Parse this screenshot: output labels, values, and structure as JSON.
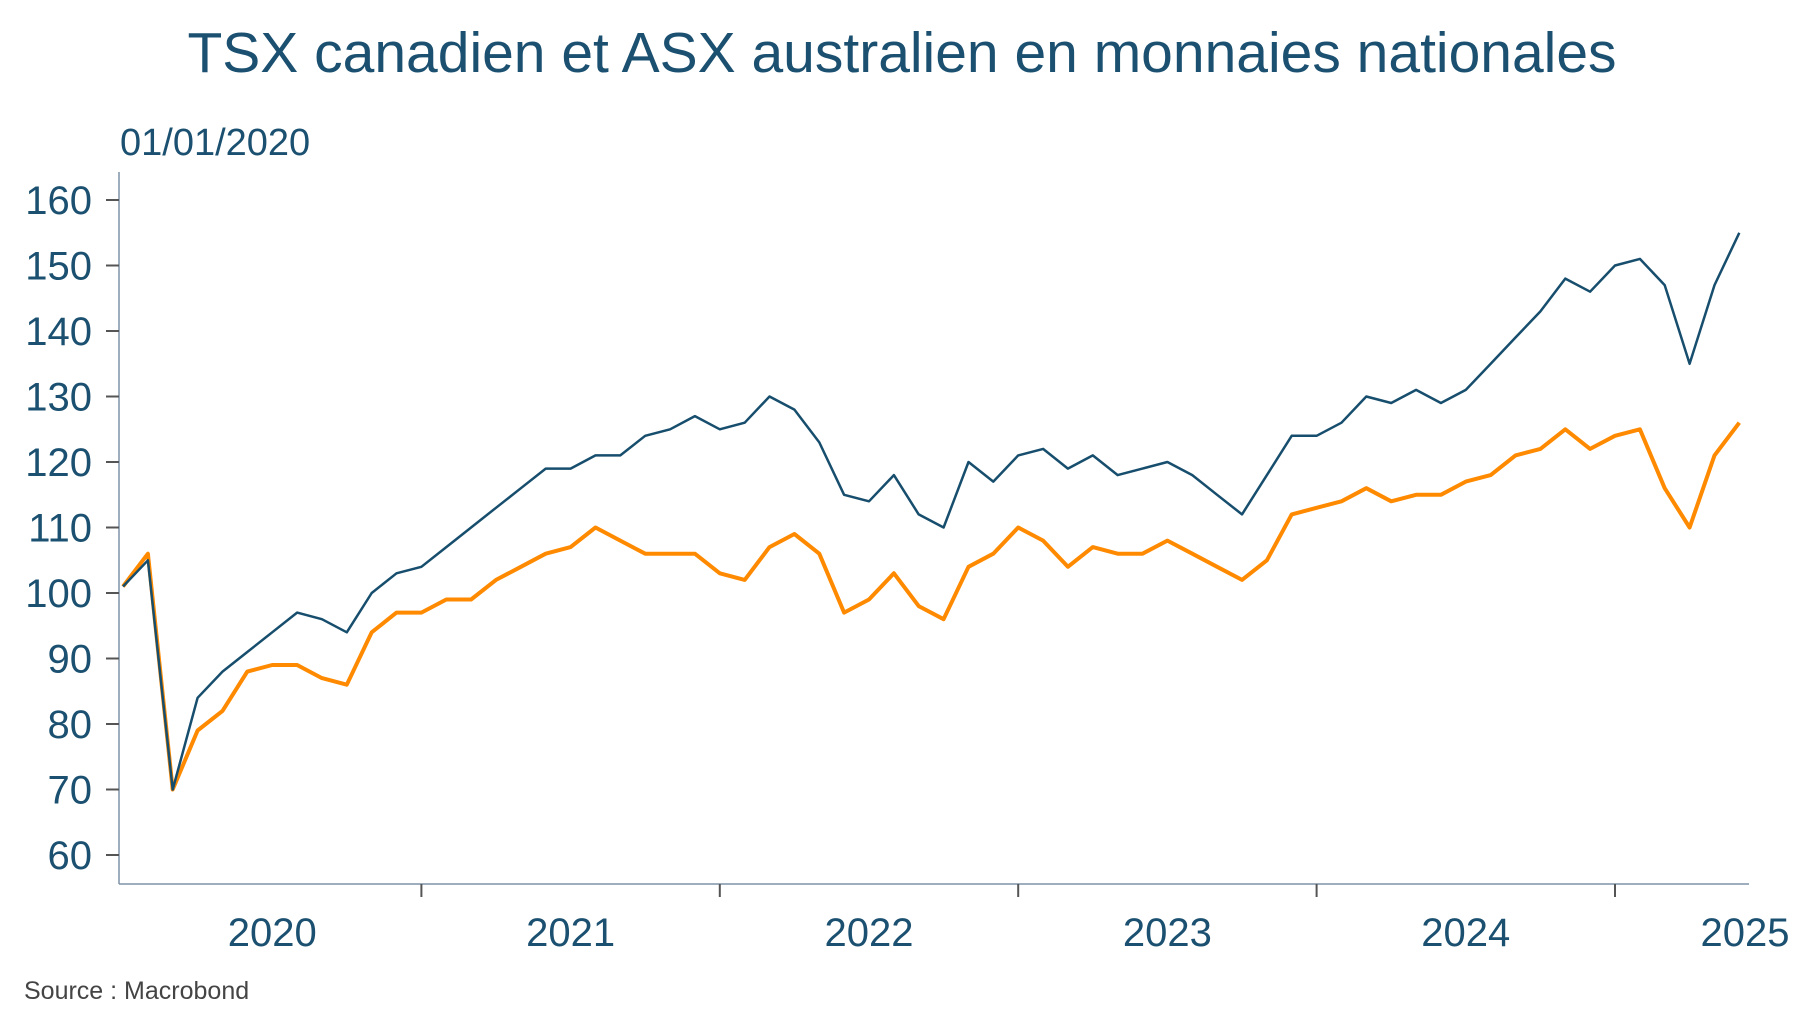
{
  "chart_data": {
    "type": "line",
    "title": "TSX canadien et ASX australien en monnaies nationales",
    "subtitle": "01/01/2020",
    "source": "Source : Macrobond",
    "xlabel": "",
    "ylabel": "",
    "ylim": [
      55,
      165
    ],
    "yticks": [
      60,
      70,
      80,
      90,
      100,
      110,
      120,
      130,
      140,
      150,
      160
    ],
    "xlim": [
      2020.0,
      2025.45
    ],
    "xtick_labels": [
      "2020",
      "2021",
      "2022",
      "2023",
      "2024",
      "2025"
    ],
    "grid": false,
    "legend": "none",
    "x_note": "monthly points, decimal years starting 2020.0 step 1/12",
    "series": [
      {
        "name": "TSX",
        "color": "#174e6d",
        "values": [
          101,
          105,
          70,
          84,
          88,
          91,
          94,
          97,
          96,
          94,
          100,
          103,
          104,
          107,
          110,
          113,
          116,
          119,
          119,
          121,
          121,
          124,
          125,
          127,
          125,
          126,
          130,
          128,
          123,
          115,
          114,
          118,
          112,
          110,
          120,
          117,
          121,
          122,
          119,
          121,
          118,
          119,
          120,
          118,
          115,
          112,
          118,
          124,
          124,
          126,
          130,
          129,
          131,
          129,
          131,
          135,
          139,
          143,
          148,
          146,
          150,
          151,
          147,
          135,
          147,
          155
        ]
      },
      {
        "name": "ASX",
        "color": "#ff8a00",
        "values": [
          101,
          106,
          70,
          79,
          82,
          88,
          89,
          89,
          87,
          86,
          94,
          97,
          97,
          99,
          99,
          102,
          104,
          106,
          107,
          110,
          108,
          106,
          106,
          106,
          103,
          102,
          107,
          109,
          106,
          97,
          99,
          103,
          98,
          96,
          104,
          106,
          110,
          108,
          104,
          107,
          106,
          106,
          108,
          106,
          104,
          102,
          105,
          112,
          113,
          114,
          116,
          114,
          115,
          115,
          117,
          118,
          121,
          122,
          125,
          122,
          124,
          125,
          116,
          110,
          121,
          126
        ]
      }
    ]
  }
}
